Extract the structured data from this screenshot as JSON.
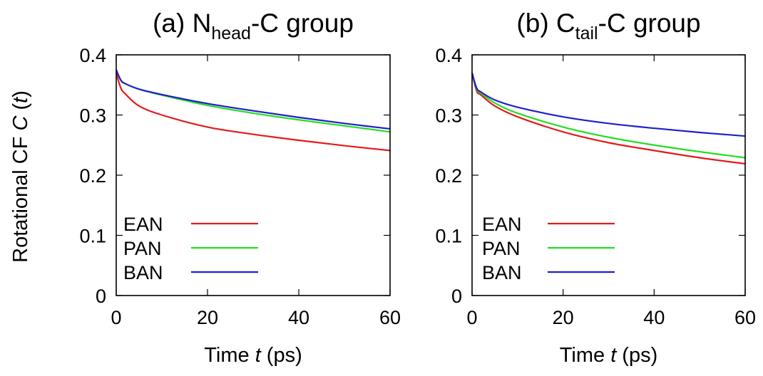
{
  "figure": {
    "ylabel_prefix": "Rotational CF ",
    "ylabel_italic": "C",
    "ylabel_suffix_open": " (",
    "ylabel_t": "t",
    "ylabel_suffix_close": ")"
  },
  "chart_data": [
    {
      "type": "line",
      "title_prefix": "(a) N",
      "title_sub": "head",
      "title_suffix": "-C group",
      "xlabel_prefix": "Time ",
      "xlabel_italic": "t",
      "xlabel_suffix": " (ps)",
      "xlim": [
        0,
        60
      ],
      "ylim": [
        0,
        0.4
      ],
      "xticks": [
        0,
        20,
        40,
        60
      ],
      "yticks": [
        0,
        0.1,
        0.2,
        0.3,
        0.4
      ],
      "xtick_labels": [
        "0",
        "20",
        "40",
        "60"
      ],
      "ytick_labels": [
        "0",
        "0.1",
        "0.2",
        "0.3",
        "0.4"
      ],
      "grid": false,
      "legend_position": "bottom-left",
      "series": [
        {
          "name": "EAN",
          "color": "#e41a1c",
          "x": [
            0,
            1,
            2,
            5,
            10,
            20,
            30,
            40,
            50,
            60
          ],
          "y": [
            0.37,
            0.345,
            0.335,
            0.315,
            0.3,
            0.28,
            0.268,
            0.258,
            0.249,
            0.241
          ]
        },
        {
          "name": "PAN",
          "color": "#22dd22",
          "x": [
            0,
            1,
            2,
            5,
            10,
            20,
            30,
            40,
            50,
            60
          ],
          "y": [
            0.375,
            0.358,
            0.352,
            0.343,
            0.333,
            0.316,
            0.303,
            0.292,
            0.282,
            0.272
          ]
        },
        {
          "name": "BAN",
          "color": "#1f1fcc",
          "x": [
            0,
            1,
            2,
            5,
            10,
            20,
            30,
            40,
            50,
            60
          ],
          "y": [
            0.375,
            0.358,
            0.352,
            0.343,
            0.334,
            0.319,
            0.307,
            0.296,
            0.286,
            0.277
          ]
        }
      ]
    },
    {
      "type": "line",
      "title_prefix": "(b) C",
      "title_sub": "tail",
      "title_suffix": "-C group",
      "xlabel_prefix": "Time ",
      "xlabel_italic": "t",
      "xlabel_suffix": " (ps)",
      "xlim": [
        0,
        60
      ],
      "ylim": [
        0,
        0.4
      ],
      "xticks": [
        0,
        20,
        40,
        60
      ],
      "yticks": [
        0,
        0.1,
        0.2,
        0.3,
        0.4
      ],
      "xtick_labels": [
        "0",
        "20",
        "40",
        "60"
      ],
      "ytick_labels": [
        "0",
        "0.1",
        "0.2",
        "0.3",
        "0.4"
      ],
      "grid": false,
      "legend_position": "bottom-left",
      "series": [
        {
          "name": "EAN",
          "color": "#e41a1c",
          "x": [
            0,
            1,
            2,
            5,
            10,
            20,
            30,
            40,
            50,
            60
          ],
          "y": [
            0.37,
            0.34,
            0.333,
            0.315,
            0.297,
            0.272,
            0.254,
            0.241,
            0.229,
            0.219
          ]
        },
        {
          "name": "PAN",
          "color": "#22dd22",
          "x": [
            0,
            1,
            2,
            5,
            10,
            20,
            30,
            40,
            50,
            60
          ],
          "y": [
            0.37,
            0.343,
            0.336,
            0.32,
            0.303,
            0.28,
            0.263,
            0.25,
            0.239,
            0.229
          ]
        },
        {
          "name": "BAN",
          "color": "#1f1fcc",
          "x": [
            0,
            1,
            2,
            5,
            10,
            20,
            30,
            40,
            50,
            60
          ],
          "y": [
            0.37,
            0.345,
            0.338,
            0.325,
            0.313,
            0.297,
            0.286,
            0.278,
            0.271,
            0.265
          ]
        }
      ]
    }
  ]
}
